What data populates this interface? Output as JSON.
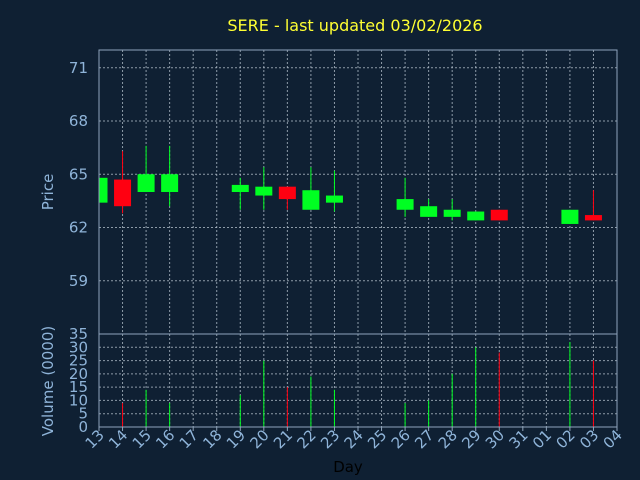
{
  "chart_data": {
    "type": "candlestick",
    "title": "SERE - last updated 03/02/2026",
    "xlabel": "Day",
    "ylabel": "Price",
    "volume_label": "Volume (0000)",
    "x_tick_labels": [
      "13",
      "14",
      "15",
      "16",
      "17",
      "18",
      "19",
      "20",
      "21",
      "22",
      "23",
      "24",
      "25",
      "26",
      "27",
      "28",
      "29",
      "30",
      "31",
      "01",
      "02",
      "03",
      "04"
    ],
    "price_axis": {
      "min": 56,
      "max": 72,
      "ticks": [
        59,
        62,
        65,
        68,
        71
      ]
    },
    "volume_axis": {
      "min": 0,
      "max": 35,
      "ticks": [
        0,
        5,
        10,
        15,
        20,
        25,
        30,
        35
      ]
    },
    "candles": [
      {
        "day": "13",
        "open": 63.4,
        "high": 64.8,
        "low": 63.4,
        "close": 64.8
      },
      {
        "day": "14",
        "open": 64.7,
        "high": 66.3,
        "low": 62.8,
        "close": 63.2
      },
      {
        "day": "15",
        "open": 64.0,
        "high": 66.6,
        "low": 64.0,
        "close": 65.0
      },
      {
        "day": "16",
        "open": 64.0,
        "high": 66.6,
        "low": 63.2,
        "close": 65.0
      },
      {
        "day": "19",
        "open": 64.0,
        "high": 64.8,
        "low": 63.0,
        "close": 64.4
      },
      {
        "day": "20",
        "open": 63.8,
        "high": 65.4,
        "low": 63.0,
        "close": 64.3
      },
      {
        "day": "21",
        "open": 64.3,
        "high": 64.3,
        "low": 63.0,
        "close": 63.6
      },
      {
        "day": "22",
        "open": 63.0,
        "high": 65.4,
        "low": 63.0,
        "close": 64.1
      },
      {
        "day": "23",
        "open": 63.4,
        "high": 65.2,
        "low": 62.9,
        "close": 63.8
      },
      {
        "day": "26",
        "open": 63.0,
        "high": 64.8,
        "low": 62.6,
        "close": 63.6
      },
      {
        "day": "27",
        "open": 62.6,
        "high": 63.6,
        "low": 62.6,
        "close": 63.2
      },
      {
        "day": "28",
        "open": 62.6,
        "high": 63.6,
        "low": 62.4,
        "close": 63.0
      },
      {
        "day": "29",
        "open": 62.4,
        "high": 62.9,
        "low": 62.4,
        "close": 62.9
      },
      {
        "day": "30",
        "open": 63.0,
        "high": 63.0,
        "low": 62.4,
        "close": 62.4
      },
      {
        "day": "02",
        "open": 62.2,
        "high": 63.0,
        "low": 62.2,
        "close": 63.0
      },
      {
        "day": "03",
        "open": 62.7,
        "high": 64.1,
        "low": 62.4,
        "close": 62.4
      }
    ],
    "volume": [
      {
        "day": "14",
        "value": 9
      },
      {
        "day": "15",
        "value": 14
      },
      {
        "day": "16",
        "value": 9
      },
      {
        "day": "19",
        "value": 12
      },
      {
        "day": "20",
        "value": 25
      },
      {
        "day": "21",
        "value": 15
      },
      {
        "day": "22",
        "value": 19
      },
      {
        "day": "23",
        "value": 14
      },
      {
        "day": "26",
        "value": 9
      },
      {
        "day": "27",
        "value": 10
      },
      {
        "day": "28",
        "value": 20
      },
      {
        "day": "29",
        "value": 30
      },
      {
        "day": "30",
        "value": 28
      },
      {
        "day": "02",
        "value": 32
      },
      {
        "day": "03",
        "value": 25
      }
    ],
    "grid": true,
    "colors": {
      "background": "#0f2033",
      "up": "#00ff22",
      "down": "#ff0011",
      "axis_text": "#8fb4d9",
      "title": "#ffff33",
      "xlabel": "#000000",
      "grid": "#b8c4d0",
      "frame": "#8fa4bc"
    }
  }
}
